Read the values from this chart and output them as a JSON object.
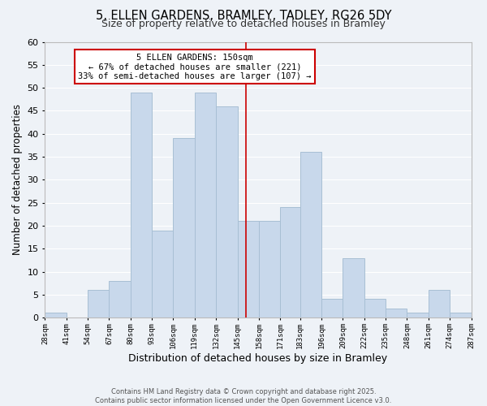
{
  "title": "5, ELLEN GARDENS, BRAMLEY, TADLEY, RG26 5DY",
  "subtitle": "Size of property relative to detached houses in Bramley",
  "xlabel": "Distribution of detached houses by size in Bramley",
  "ylabel": "Number of detached properties",
  "bin_edges": [
    28,
    41,
    54,
    67,
    80,
    93,
    106,
    119,
    132,
    145,
    158,
    171,
    183,
    196,
    209,
    222,
    235,
    248,
    261,
    274,
    287
  ],
  "bin_counts": [
    1,
    0,
    6,
    8,
    49,
    19,
    39,
    49,
    46,
    21,
    21,
    24,
    36,
    4,
    13,
    4,
    2,
    1,
    6,
    1
  ],
  "bar_color": "#c8d8eb",
  "bar_edge_color": "#a8bfd4",
  "vline_x": 150,
  "vline_color": "#cc0000",
  "annotation_title": "5 ELLEN GARDENS: 150sqm",
  "annotation_line1": "← 67% of detached houses are smaller (221)",
  "annotation_line2": "33% of semi-detached houses are larger (107) →",
  "annotation_box_color": "#ffffff",
  "annotation_box_edge": "#cc0000",
  "ylim": [
    0,
    60
  ],
  "yticks": [
    0,
    5,
    10,
    15,
    20,
    25,
    30,
    35,
    40,
    45,
    50,
    55,
    60
  ],
  "tick_labels": [
    "28sqm",
    "41sqm",
    "54sqm",
    "67sqm",
    "80sqm",
    "93sqm",
    "106sqm",
    "119sqm",
    "132sqm",
    "145sqm",
    "158sqm",
    "171sqm",
    "183sqm",
    "196sqm",
    "209sqm",
    "222sqm",
    "235sqm",
    "248sqm",
    "261sqm",
    "274sqm",
    "287sqm"
  ],
  "background_color": "#eef2f7",
  "grid_color": "#ffffff",
  "footer_line1": "Contains HM Land Registry data © Crown copyright and database right 2025.",
  "footer_line2": "Contains public sector information licensed under the Open Government Licence v3.0."
}
